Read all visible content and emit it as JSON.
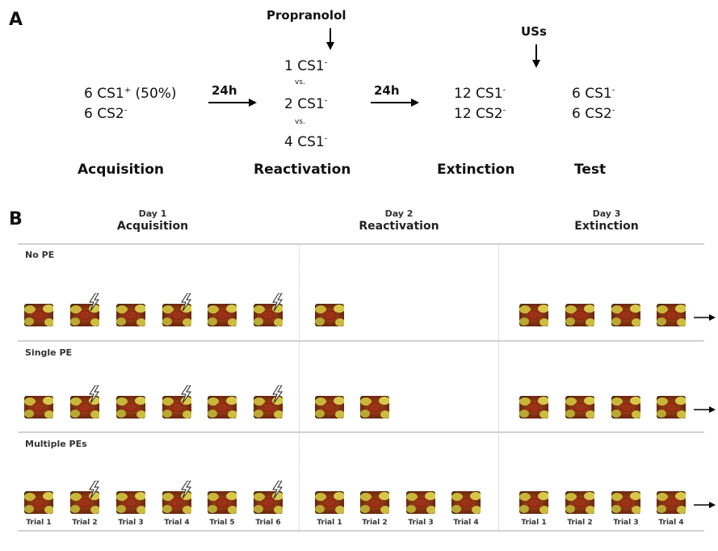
{
  "panel_a": {
    "label": "A",
    "acquisition": {
      "line1_main": "6 CS1",
      "line1_sup": "+",
      "line1_tail": " (50%)",
      "line2_main": "6 CS2",
      "line2_sup": "-",
      "title": "Acquisition"
    },
    "arrow1_label": "24h",
    "drug": "Propranolol",
    "reactivation": {
      "opt1_main": "1 CS1",
      "opt1_sup": "-",
      "vs1": "vs.",
      "opt2_main": "2 CS1",
      "opt2_sup": "-",
      "vs2": "vs.",
      "opt3_main": "4 CS1",
      "opt3_sup": "-",
      "title": "Reactivation"
    },
    "arrow2_label": "24h",
    "extinction": {
      "line1_main": "12 CS1",
      "line1_sup": "-",
      "line2_main": "12 CS2",
      "line2_sup": "-",
      "title": "Extinction"
    },
    "uss": "USs",
    "test": {
      "line1_main": "6 CS1",
      "line1_sup": "-",
      "line2_main": "6 CS2",
      "line2_sup": "-",
      "title": "Test"
    }
  },
  "panel_b": {
    "label": "B",
    "days": [
      {
        "day": "Day 1",
        "phase": "Acquisition"
      },
      {
        "day": "Day 2",
        "phase": "Reactivation"
      },
      {
        "day": "Day 3",
        "phase": "Extinction"
      }
    ],
    "rows": [
      {
        "label": "No PE",
        "reactivation_trials": 1
      },
      {
        "label": "Single PE",
        "reactivation_trials": 2
      },
      {
        "label": "Multiple PEs",
        "reactivation_trials": 4
      }
    ],
    "acquisition_shock_trials": [
      2,
      4,
      6
    ],
    "trial_labels": {
      "acquisition": [
        "Trial 1",
        "Trial 2",
        "Trial 3",
        "Trial 4",
        "Trial 5",
        "Trial 6"
      ],
      "reactivation": [
        "Trial 1",
        "Trial 2",
        "Trial 3",
        "Trial 4"
      ],
      "extinction": [
        "Trial 1",
        "Trial 2",
        "Trial 3",
        "Trial 4"
      ]
    }
  }
}
